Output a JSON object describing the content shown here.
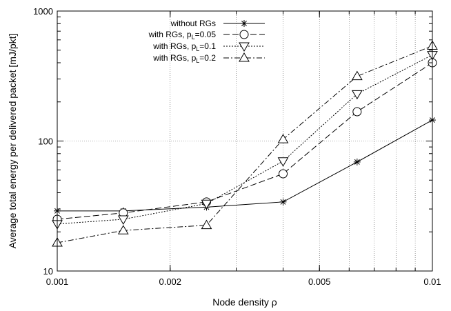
{
  "chart_data": {
    "type": "line",
    "title": "",
    "xlabel": "Node density ρ",
    "ylabel": "Average total energy per delivered packet [mJ/pkt]",
    "xscale": "log",
    "yscale": "log",
    "xlim": [
      0.001,
      0.01
    ],
    "ylim": [
      10,
      1000
    ],
    "grid": true,
    "legend_position": "top-left",
    "x_ticks": [
      {
        "value": 0.001,
        "label": "0.001"
      },
      {
        "value": 0.002,
        "label": "0.002"
      },
      {
        "value": 0.005,
        "label": "0.005"
      },
      {
        "value": 0.01,
        "label": "0.01"
      }
    ],
    "y_ticks": [
      {
        "value": 10,
        "label": "10"
      },
      {
        "value": 100,
        "label": "100"
      },
      {
        "value": 1000,
        "label": "1000"
      }
    ],
    "x": [
      0.001,
      0.0015,
      0.0025,
      0.004,
      0.0063,
      0.01
    ],
    "series": [
      {
        "name": "without RGs",
        "name_main": "without RGs",
        "name_sub": "",
        "name_rest": "",
        "marker": "star",
        "dash": "",
        "values": [
          29,
          29,
          31,
          34,
          69,
          145
        ]
      },
      {
        "name": "with RGs, pL=0.05",
        "name_main": "with RGs, p",
        "name_sub": "L",
        "name_rest": "=0.05",
        "marker": "circle",
        "dash": "9,4",
        "values": [
          25,
          28,
          34,
          56,
          168,
          400
        ]
      },
      {
        "name": "with RGs, pL=0.1",
        "name_main": "with RGs, p",
        "name_sub": "L",
        "name_rest": "=0.1",
        "marker": "triangle-down",
        "dash": "2,2",
        "values": [
          23,
          25,
          33,
          70,
          230,
          460
        ]
      },
      {
        "name": "with RGs, pL=0.2",
        "name_main": "with RGs, p",
        "name_sub": "L",
        "name_rest": "=0.2",
        "marker": "triangle-up",
        "dash": "8,3,2,3",
        "values": [
          16.5,
          20.5,
          22.5,
          103,
          315,
          540
        ]
      }
    ]
  }
}
